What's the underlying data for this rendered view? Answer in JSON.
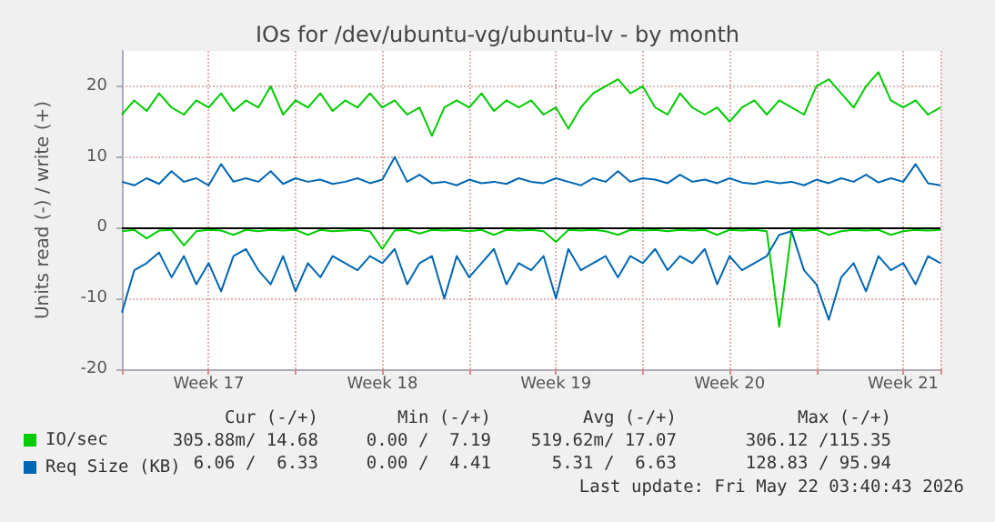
{
  "chart_data": {
    "type": "line",
    "title": "IOs for /dev/ubuntu-vg/ubuntu-lv - by month",
    "ylabel": "Units read (-) / write (+)",
    "categories": [
      null,
      null,
      null,
      null,
      null,
      null,
      null,
      "Week 17",
      null,
      null,
      null,
      null,
      null,
      null,
      null,
      null,
      null,
      null,
      null,
      null,
      null,
      "Week 18",
      null,
      null,
      null,
      null,
      null,
      null,
      null,
      null,
      null,
      null,
      null,
      null,
      null,
      "Week 19",
      null,
      null,
      null,
      null,
      null,
      null,
      null,
      null,
      null,
      null,
      null,
      null,
      null,
      "Week 20",
      null,
      null,
      null,
      null,
      null,
      null,
      null,
      null,
      null,
      null,
      null,
      null,
      null,
      "Week 21",
      null,
      null,
      null
    ],
    "series": [
      {
        "name": "IO/sec",
        "color": "#00cc00",
        "values": [
          16,
          18,
          16.5,
          19,
          17,
          16,
          18,
          17,
          19,
          16.5,
          18,
          17,
          20,
          16,
          18,
          17,
          19,
          16.5,
          18,
          17,
          19,
          17,
          18,
          16,
          17,
          13,
          17,
          18,
          17,
          19,
          16.5,
          18,
          17,
          18,
          16,
          17,
          14,
          17,
          19,
          20,
          21,
          19,
          20,
          17,
          16,
          19,
          17,
          16,
          17,
          15,
          17,
          18,
          16,
          18,
          17,
          16,
          20,
          21,
          19,
          17,
          20,
          22,
          18,
          17,
          18,
          16,
          17
        ]
      },
      {
        "color": "#00cc00",
        "values": [
          -0.5,
          -0.3,
          -1.5,
          -0.4,
          -0.3,
          -2.5,
          -0.5,
          -0.3,
          -0.4,
          -1,
          -0.3,
          -0.5,
          -0.3,
          -0.4,
          -0.3,
          -1,
          -0.3,
          -0.5,
          -0.4,
          -0.3,
          -0.5,
          -3,
          -0.4,
          -0.3,
          -0.8,
          -0.3,
          -0.4,
          -0.3,
          -0.5,
          -0.3,
          -1,
          -0.3,
          -0.4,
          -0.3,
          -0.5,
          -2,
          -0.3,
          -0.4,
          -0.3,
          -0.5,
          -1,
          -0.3,
          -0.4,
          -0.3,
          -0.5,
          -0.3,
          -0.4,
          -0.3,
          -1,
          -0.3,
          -0.4,
          -0.3,
          -0.5,
          -14,
          -0.3,
          -0.4,
          -0.3,
          -1,
          -0.5,
          -0.3,
          -0.4,
          -0.3,
          -1,
          -0.5,
          -0.3,
          -0.4,
          -0.3
        ]
      },
      {
        "name": "Req Size (KB)",
        "color": "#0066b3",
        "values": [
          6.5,
          6,
          7,
          6.2,
          8,
          6.5,
          7,
          6,
          9,
          6.5,
          7,
          6.5,
          8,
          6.2,
          7,
          6.5,
          6.8,
          6.2,
          6.5,
          7,
          6.3,
          6.8,
          10,
          6.5,
          7.5,
          6.3,
          6.5,
          6,
          6.8,
          6.3,
          6.5,
          6.2,
          7,
          6.5,
          6.3,
          7,
          6.5,
          6,
          7,
          6.5,
          8,
          6.5,
          7,
          6.8,
          6.3,
          7.5,
          6.5,
          6.8,
          6.3,
          7,
          6.4,
          6.2,
          6.6,
          6.3,
          6.5,
          6,
          6.8,
          6.3,
          7,
          6.5,
          7.5,
          6.4,
          7,
          6.5,
          9,
          6.3,
          6
        ]
      },
      {
        "color": "#0066b3",
        "values": [
          -12,
          -6,
          -5,
          -3.5,
          -7,
          -4,
          -8,
          -5,
          -9,
          -4,
          -3,
          -6,
          -8,
          -4,
          -9,
          -5,
          -7,
          -4,
          -5,
          -6,
          -4,
          -5,
          -3,
          -8,
          -5,
          -4,
          -10,
          -4,
          -7,
          -5,
          -3,
          -8,
          -5,
          -6,
          -4,
          -10,
          -3,
          -6,
          -5,
          -4,
          -7,
          -4,
          -5,
          -3,
          -6,
          -4,
          -5,
          -3,
          -8,
          -4,
          -6,
          -5,
          -4,
          -1,
          -0.5,
          -6,
          -8,
          -13,
          -7,
          -5,
          -9,
          -4,
          -6,
          -5,
          -8,
          -4,
          -5
        ]
      }
    ],
    "ylim": [
      -20,
      25
    ],
    "yticks": [
      -20,
      -10,
      0,
      10,
      20
    ],
    "ref_lines": [
      {
        "axis": "y",
        "value": 0,
        "color": "#000000"
      }
    ],
    "grid": true,
    "legend": "bottom left",
    "marker": "none",
    "line_style": "solid",
    "annotations": [
      "Cur (-/+)",
      "Min (-/+)",
      "Avg (-/+)",
      "Max (-/+)",
      "305.88m/ 14.68",
      "0.00 /  7.19",
      "519.62m/ 17.07",
      "306.12 /115.35",
      "6.06 /  6.33",
      "0.00 /  4.41",
      "5.31 /  6.63",
      "128.83 / 95.94",
      "Last update: Fri May 22 03:40:43 2026"
    ]
  }
}
